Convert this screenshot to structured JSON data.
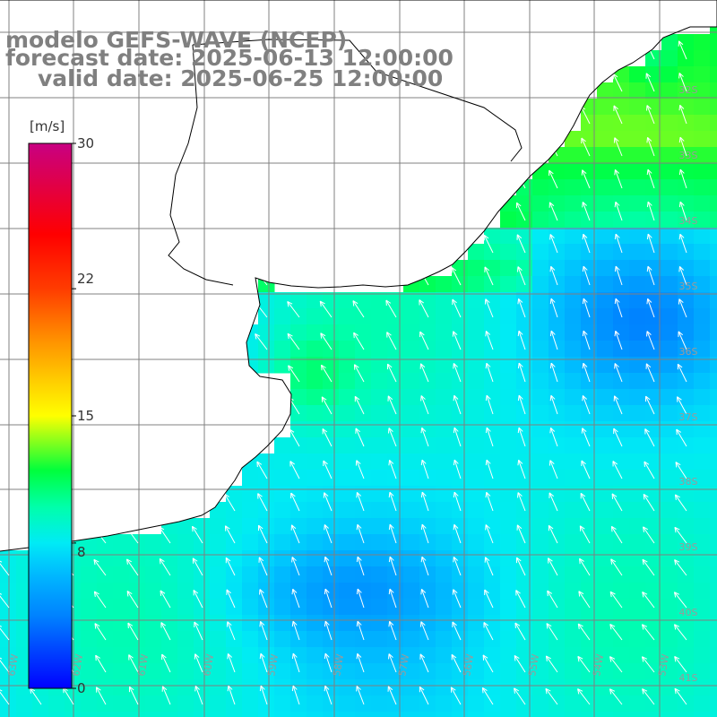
{
  "title": {
    "line1": "modelo GEFS-WAVE (NCEP)",
    "line2": "forecast date: 2025-06-13 12:00:00",
    "line3": "valid date: 2025-06-25 12:00:00"
  },
  "colorbar": {
    "unit": "[m/s]",
    "ticks": [
      "30",
      "22",
      "15",
      "8",
      "0"
    ],
    "tick_values": [
      30,
      22,
      15,
      8,
      0
    ],
    "range": [
      0,
      30
    ],
    "colors": [
      "#0000ff",
      "#00a0ff",
      "#00ffff",
      "#00ff80",
      "#00ff00",
      "#80ff00",
      "#ffff00",
      "#ffa000",
      "#ff4000",
      "#ff0000",
      "#e00060",
      "#c00080"
    ]
  },
  "map": {
    "lat_labels": [
      "32S",
      "33S",
      "34S",
      "35S",
      "36S",
      "37S",
      "38S",
      "39S",
      "40S",
      "41S"
    ],
    "lon_labels": [
      "63W",
      "62W",
      "61W",
      "60W",
      "59W",
      "58W",
      "57W",
      "56W",
      "55W",
      "54W",
      "53W"
    ],
    "land_color": "#ffffff",
    "grid_color": "#808080",
    "coast_color": "#000000",
    "arrow_color": "#ffffff",
    "wind_direction": "from south-east toward north-west",
    "typical_speed_ms": 8
  }
}
